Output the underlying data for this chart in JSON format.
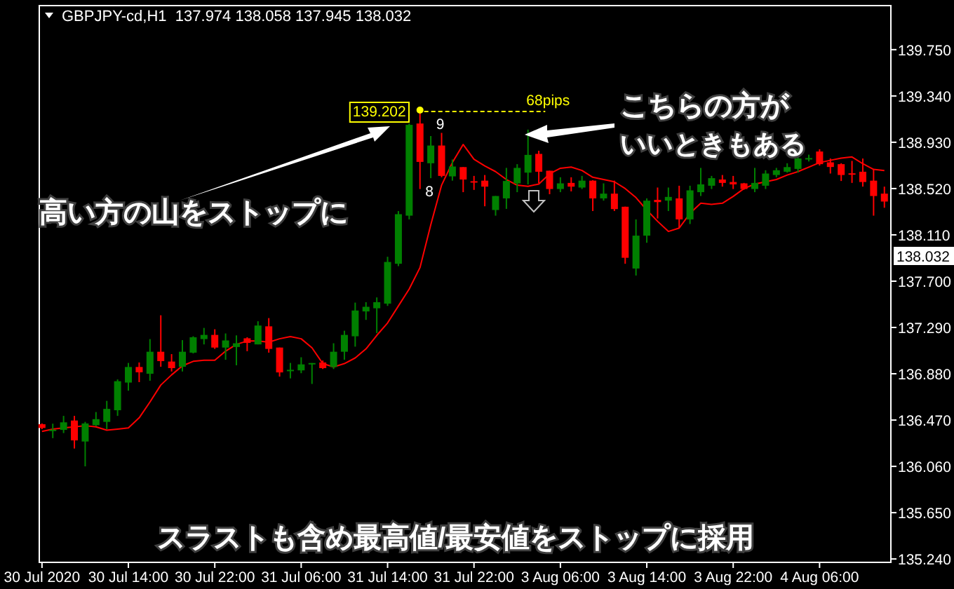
{
  "chart_data": {
    "type": "candlestick",
    "title": "GBPJPY-cd,H1  137.974 138.058 137.945 138.032",
    "categories": [
      "30 Jul 2020",
      null,
      null,
      null,
      null,
      null,
      null,
      null,
      "30 Jul 14:00",
      null,
      null,
      null,
      null,
      null,
      null,
      null,
      "30 Jul 22:00",
      null,
      null,
      null,
      null,
      null,
      null,
      null,
      "31 Jul 06:00",
      null,
      null,
      null,
      null,
      null,
      null,
      null,
      "31 Jul 14:00",
      null,
      null,
      null,
      null,
      null,
      null,
      null,
      "31 Jul 22:00",
      null,
      null,
      null,
      null,
      null,
      null,
      null,
      "3 Aug 06:00",
      null,
      null,
      null,
      null,
      null,
      null,
      null,
      "3 Aug 14:00",
      null,
      null,
      null,
      null,
      null,
      null,
      null,
      "3 Aug 22:00",
      null,
      null,
      null,
      null,
      null,
      null,
      null,
      "4 Aug 06:00",
      null,
      null,
      null,
      null,
      null,
      null
    ],
    "ohlc": [
      [
        136.433,
        136.44,
        136.39,
        136.4
      ],
      [
        136.375,
        136.438,
        136.31,
        136.385
      ],
      [
        136.383,
        136.507,
        136.355,
        136.45
      ],
      [
        136.466,
        136.507,
        136.218,
        136.29
      ],
      [
        136.28,
        136.454,
        136.06,
        136.44
      ],
      [
        136.425,
        136.541,
        136.416,
        136.478
      ],
      [
        136.454,
        136.64,
        136.39,
        136.569
      ],
      [
        136.557,
        136.83,
        136.507,
        136.814
      ],
      [
        136.802,
        136.976,
        136.73,
        136.94
      ],
      [
        136.94,
        136.98,
        136.806,
        136.893
      ],
      [
        136.88,
        137.187,
        136.818,
        137.075
      ],
      [
        137.075,
        137.398,
        136.942,
        136.992
      ],
      [
        136.988,
        137.054,
        136.9,
        136.93
      ],
      [
        136.942,
        137.178,
        136.9,
        137.075
      ],
      [
        137.067,
        137.212,
        137.06,
        137.203
      ],
      [
        137.187,
        137.286,
        137.14,
        137.224
      ],
      [
        137.224,
        137.274,
        137.1,
        137.112
      ],
      [
        137.112,
        137.237,
        137.004,
        137.175
      ],
      [
        137.117,
        137.22,
        136.955,
        137.15
      ],
      [
        137.194,
        137.203,
        137.08,
        137.153
      ],
      [
        137.14,
        137.345,
        137.14,
        137.307
      ],
      [
        137.3,
        137.373,
        137.067,
        137.1
      ],
      [
        137.112,
        137.112,
        136.855,
        136.892
      ],
      [
        136.905,
        136.976,
        136.839,
        136.915
      ],
      [
        136.91,
        137.026,
        136.885,
        136.963
      ],
      [
        136.965,
        136.975,
        136.79,
        136.975
      ],
      [
        136.98,
        136.997,
        136.922,
        136.93
      ],
      [
        136.94,
        137.15,
        136.922,
        137.075
      ],
      [
        137.075,
        137.261,
        137.004,
        137.224
      ],
      [
        137.212,
        137.51,
        137.12,
        137.44
      ],
      [
        137.432,
        137.514,
        137.357,
        137.473
      ],
      [
        137.46,
        137.556,
        137.24,
        137.514
      ],
      [
        137.501,
        137.916,
        137.481,
        137.87
      ],
      [
        137.854,
        138.321,
        137.833,
        138.293
      ],
      [
        138.28,
        139.096,
        138.247,
        139.084
      ],
      [
        139.096,
        139.202,
        138.516,
        138.756
      ],
      [
        138.744,
        138.985,
        138.612,
        138.901
      ],
      [
        138.901,
        139.013,
        138.62,
        138.632
      ],
      [
        138.628,
        138.777,
        138.59,
        138.715
      ],
      [
        138.71,
        138.71,
        138.488,
        138.6
      ],
      [
        138.585,
        138.632,
        138.508,
        138.575
      ],
      [
        138.59,
        138.64,
        138.363,
        138.537
      ],
      [
        138.33,
        138.454,
        138.28,
        138.454
      ],
      [
        138.433,
        138.703,
        138.34,
        138.587
      ],
      [
        138.566,
        138.736,
        138.488,
        138.703
      ],
      [
        138.661,
        139.042,
        138.557,
        138.818
      ],
      [
        138.827,
        138.855,
        138.566,
        138.669
      ],
      [
        138.678,
        138.678,
        138.47,
        138.516
      ],
      [
        138.516,
        138.62,
        138.488,
        138.566
      ],
      [
        138.57,
        138.62,
        138.495,
        138.537
      ],
      [
        138.529,
        138.632,
        138.516,
        138.59
      ],
      [
        138.59,
        138.594,
        138.321,
        138.433
      ],
      [
        138.433,
        138.566,
        138.413,
        138.475
      ],
      [
        138.475,
        138.59,
        138.321,
        138.338
      ],
      [
        138.359,
        138.36,
        137.854,
        137.907
      ],
      [
        137.812,
        138.247,
        137.75,
        138.103
      ],
      [
        138.103,
        138.433,
        138.04,
        138.413
      ],
      [
        138.42,
        138.529,
        138.255,
        138.4
      ],
      [
        138.413,
        138.529,
        138.321,
        138.446
      ],
      [
        138.433,
        138.545,
        138.172,
        138.247
      ],
      [
        138.247,
        138.545,
        138.206,
        138.504
      ],
      [
        138.488,
        138.703,
        138.454,
        138.557
      ],
      [
        138.545,
        138.632,
        138.516,
        138.612
      ],
      [
        138.6,
        138.64,
        138.537,
        138.57
      ],
      [
        138.578,
        138.632,
        138.516,
        138.557
      ],
      [
        138.566,
        138.57,
        138.51,
        138.516
      ],
      [
        138.516,
        138.703,
        138.488,
        138.57
      ],
      [
        138.545,
        138.682,
        138.516,
        138.653
      ],
      [
        138.64,
        138.703,
        138.62,
        138.682
      ],
      [
        138.669,
        138.744,
        138.661,
        138.71
      ],
      [
        138.694,
        138.827,
        138.661,
        138.786
      ],
      [
        138.78,
        138.82,
        138.76,
        138.79
      ],
      [
        138.848,
        138.868,
        138.724,
        138.736
      ],
      [
        138.752,
        138.786,
        138.653,
        138.711
      ],
      [
        138.736,
        138.744,
        138.587,
        138.64
      ],
      [
        138.655,
        138.765,
        138.57,
        138.645
      ],
      [
        138.669,
        138.786,
        138.537,
        138.578
      ],
      [
        138.59,
        138.69,
        138.28,
        138.454
      ],
      [
        138.475,
        138.537,
        138.35,
        138.405
      ]
    ],
    "series": [
      {
        "type": "line",
        "color": "#ff0000",
        "values": [
          136.37,
          136.39,
          136.4,
          136.41,
          136.42,
          136.41,
          136.38,
          136.39,
          136.4,
          136.49,
          136.63,
          136.78,
          136.87,
          136.95,
          136.99,
          137.0,
          137.0,
          137.08,
          137.14,
          137.17,
          137.17,
          137.16,
          137.19,
          137.21,
          137.19,
          137.11,
          136.97,
          136.94,
          136.97,
          137.02,
          137.1,
          137.22,
          137.33,
          137.48,
          137.63,
          137.82,
          138.2,
          138.55,
          138.75,
          138.91,
          138.78,
          138.72,
          138.67,
          138.6,
          138.55,
          138.54,
          138.56,
          138.65,
          138.7,
          138.71,
          138.68,
          138.62,
          138.6,
          138.58,
          138.52,
          138.44,
          138.33,
          138.23,
          138.14,
          138.17,
          138.3,
          138.39,
          138.38,
          138.39,
          138.45,
          138.52,
          138.56,
          138.58,
          138.6,
          138.64,
          138.67,
          138.71,
          138.75,
          138.77,
          138.79,
          138.8,
          138.74,
          138.69,
          138.68
        ]
      }
    ],
    "ylim": [
      135.21,
      140.14
    ],
    "yticks": [
      {
        "value": 135.24,
        "label": "135.240"
      },
      {
        "value": 135.65,
        "label": "135.650"
      },
      {
        "value": 136.06,
        "label": "136.060"
      },
      {
        "value": 136.47,
        "label": "136.470"
      },
      {
        "value": 136.88,
        "label": "136.880"
      },
      {
        "value": 137.29,
        "label": "137.290"
      },
      {
        "value": 137.7,
        "label": "137.700"
      },
      {
        "value": 138.11,
        "label": "138.110"
      },
      {
        "value": 138.52,
        "label": "138.520"
      },
      {
        "value": 138.93,
        "label": "138.930"
      },
      {
        "value": 139.34,
        "label": "139.340"
      },
      {
        "value": 139.75,
        "label": "139.750"
      }
    ],
    "ref_lines": [
      {
        "axis": "y",
        "value": 139.202,
        "label": "68pips",
        "color": "#ffff00",
        "line_style": "dashed"
      }
    ],
    "annotations": [
      "139.202",
      "9",
      "8",
      "138.032",
      "高い方の山をストップに",
      "こちらの方が",
      "いいときもある",
      "スラストも含め最高値/最安値をストップに採用"
    ]
  }
}
